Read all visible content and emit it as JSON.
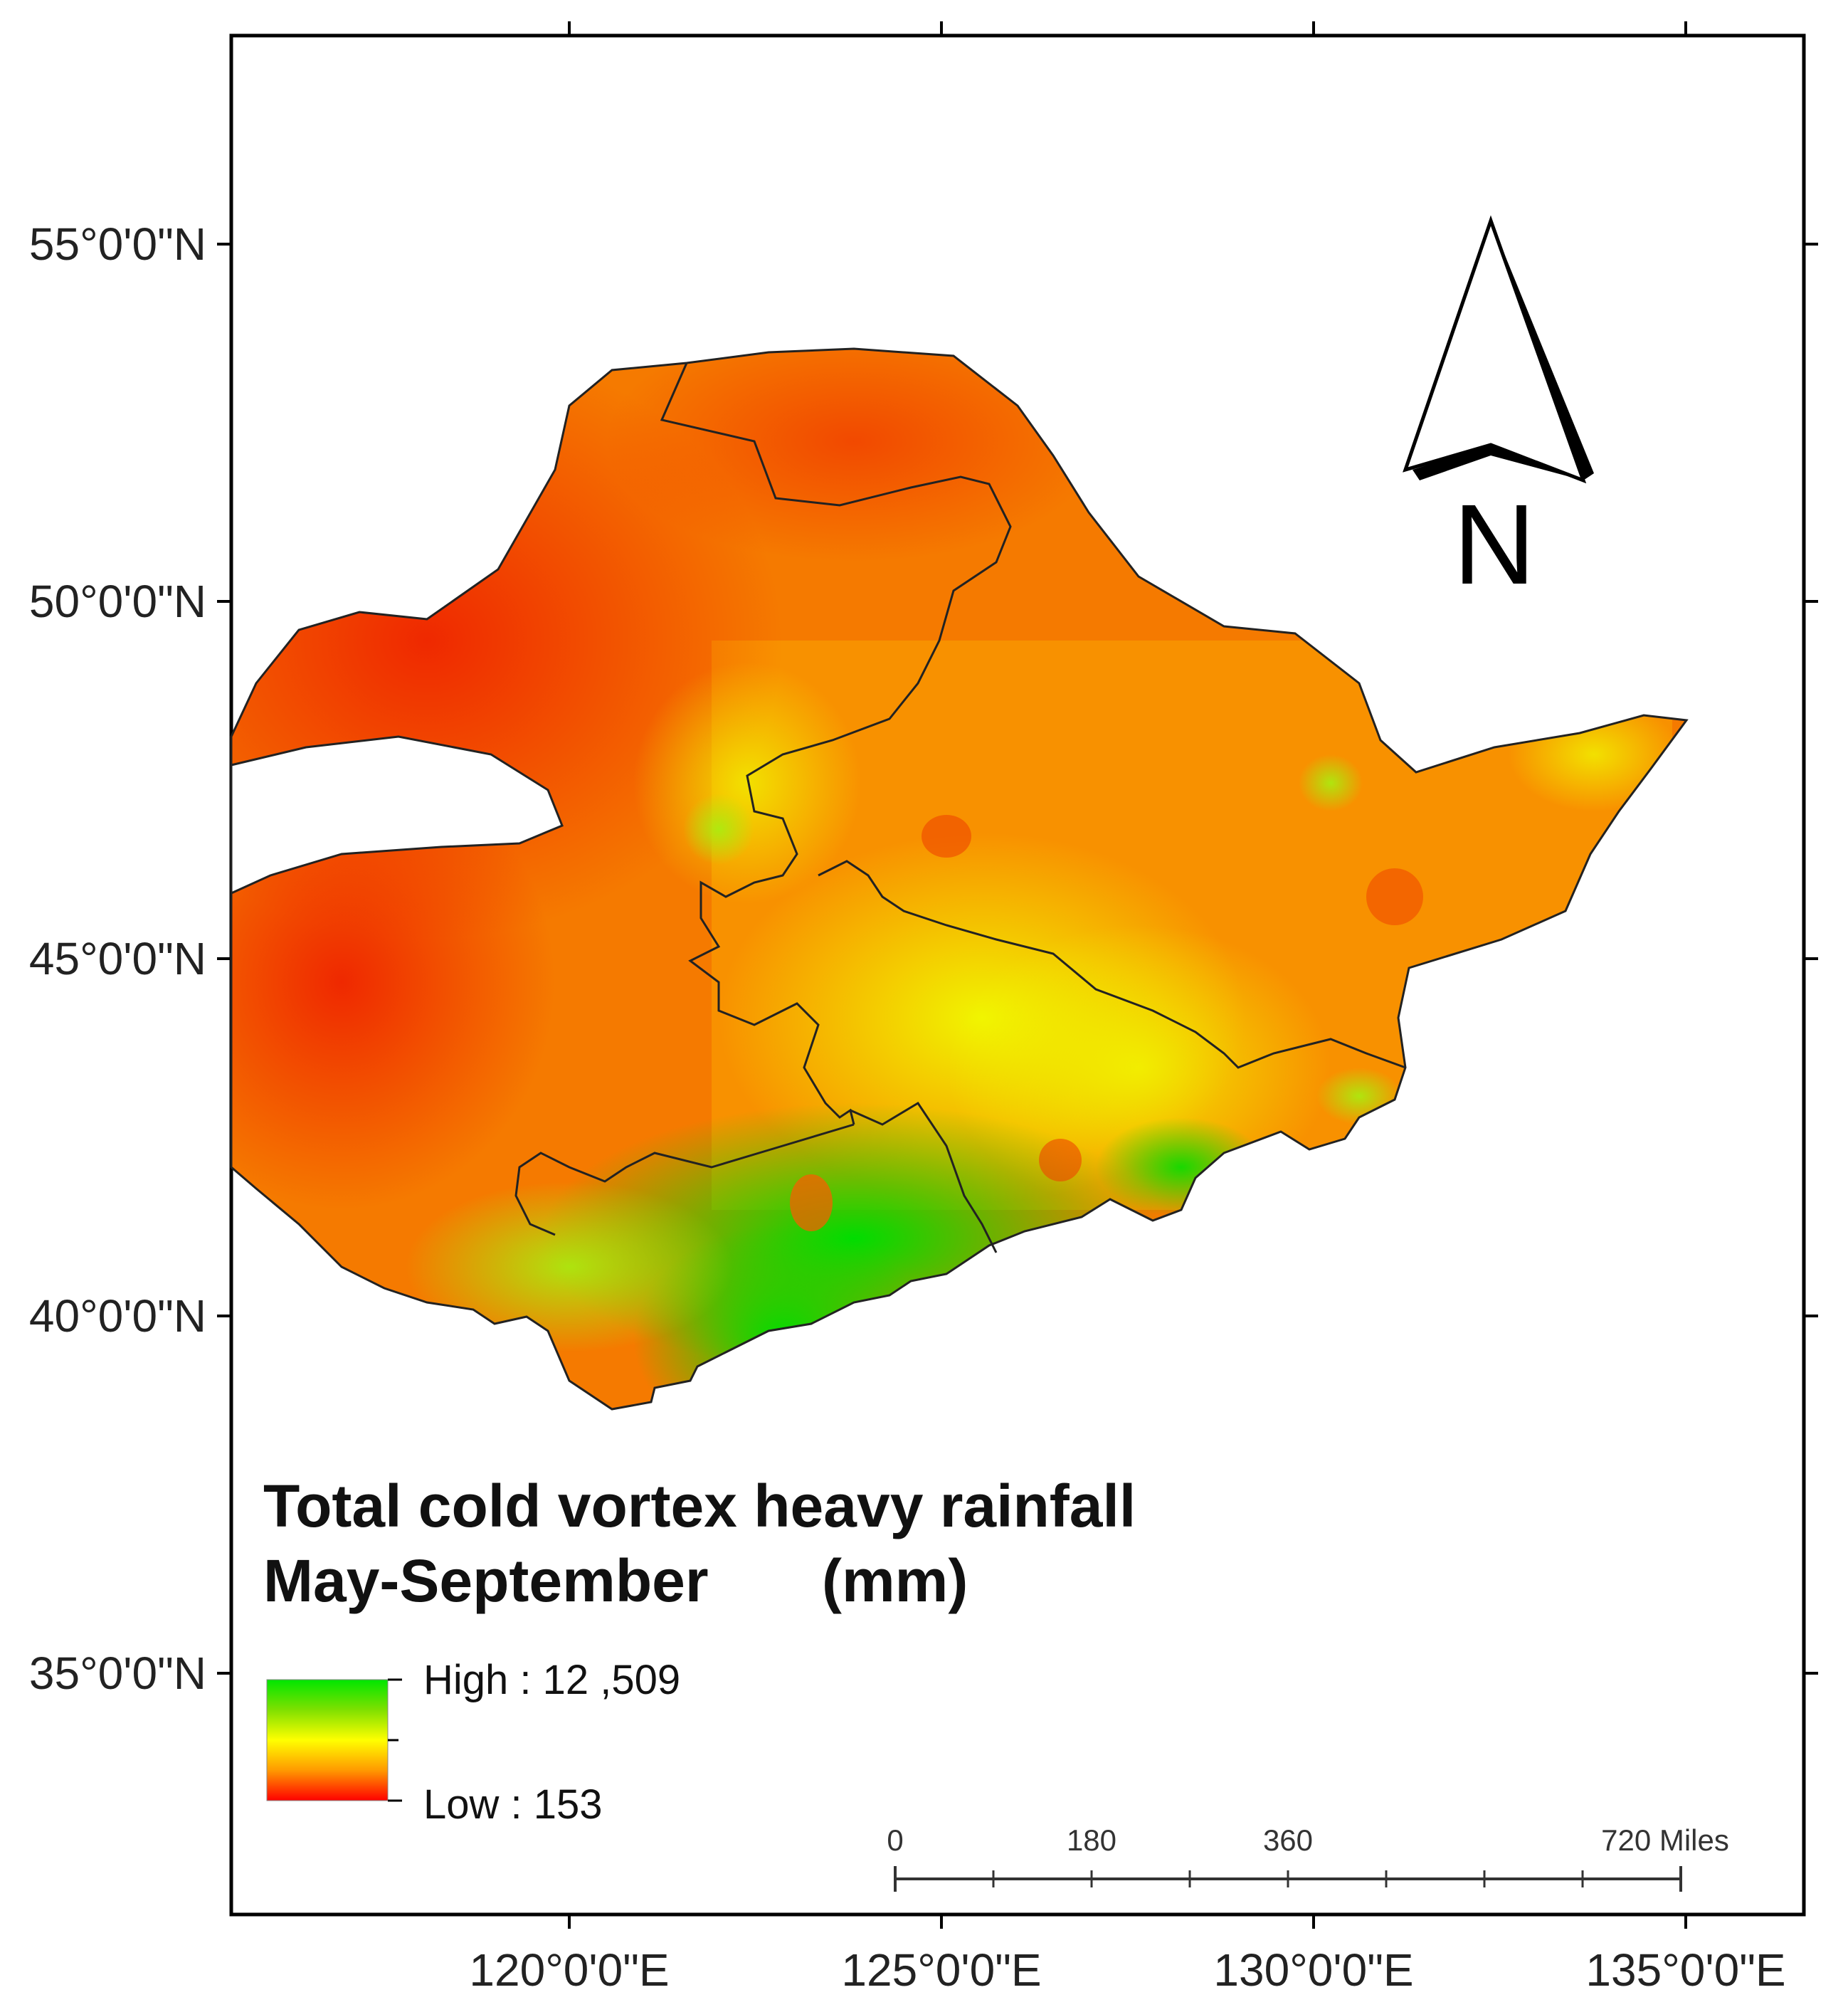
{
  "map": {
    "title_line1": "Total cold vortex heavy rainfall",
    "title_line2": "May-September",
    "title_unit": "(mm)",
    "lat_labels": [
      "55°0'0\"N",
      "50°0'0\"N",
      "45°0'0\"N",
      "40°0'0\"N",
      "35°0'0\"N"
    ],
    "lon_labels": [
      "120°0'0\"E",
      "125°0'0\"E",
      "130°0'0\"E",
      "135°0'0\"E"
    ],
    "north_letter": "N",
    "legend": {
      "high_label": "High : 12 ,509",
      "low_label": "Low : 153",
      "colors": [
        "#00e600",
        "#7fe000",
        "#ffff00",
        "#ff9900",
        "#ff0000"
      ]
    },
    "scale_bar": {
      "labels": [
        "0",
        "180",
        "360",
        "720 Miles"
      ]
    }
  }
}
